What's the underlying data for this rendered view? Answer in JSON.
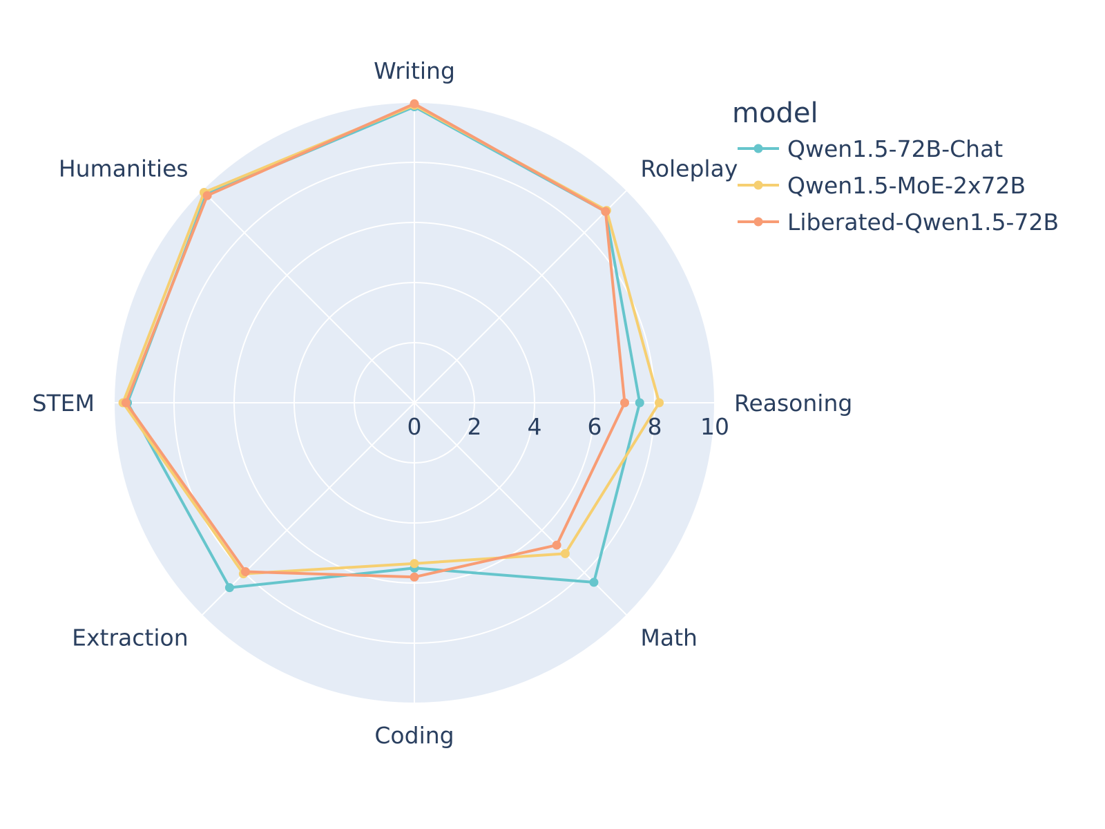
{
  "chart_data": {
    "type": "radar",
    "categories": [
      "Writing",
      "Roleplay",
      "Reasoning",
      "Math",
      "Coding",
      "Extraction",
      "STEM",
      "Humanities"
    ],
    "radial_range": [
      0,
      10
    ],
    "radial_ticks": [
      "0",
      "2",
      "4",
      "6",
      "8",
      "10"
    ],
    "legend_title": "model",
    "legend_position": "top-right",
    "grid": true,
    "series": [
      {
        "name": "Qwen1.5-72B-Chat",
        "color": "#66c5cc",
        "values": [
          9.85,
          9.0,
          7.5,
          8.45,
          5.5,
          8.7,
          9.55,
          9.8
        ]
      },
      {
        "name": "Qwen1.5-MoE-2x72B",
        "color": "#f6cf71",
        "values": [
          9.9,
          9.05,
          8.15,
          7.1,
          5.35,
          8.05,
          9.7,
          9.9
        ]
      },
      {
        "name": "Liberated-Qwen1.5-72B",
        "color": "#f89c74",
        "values": [
          9.95,
          9.0,
          7.0,
          6.7,
          5.8,
          7.95,
          9.6,
          9.75
        ]
      }
    ]
  }
}
